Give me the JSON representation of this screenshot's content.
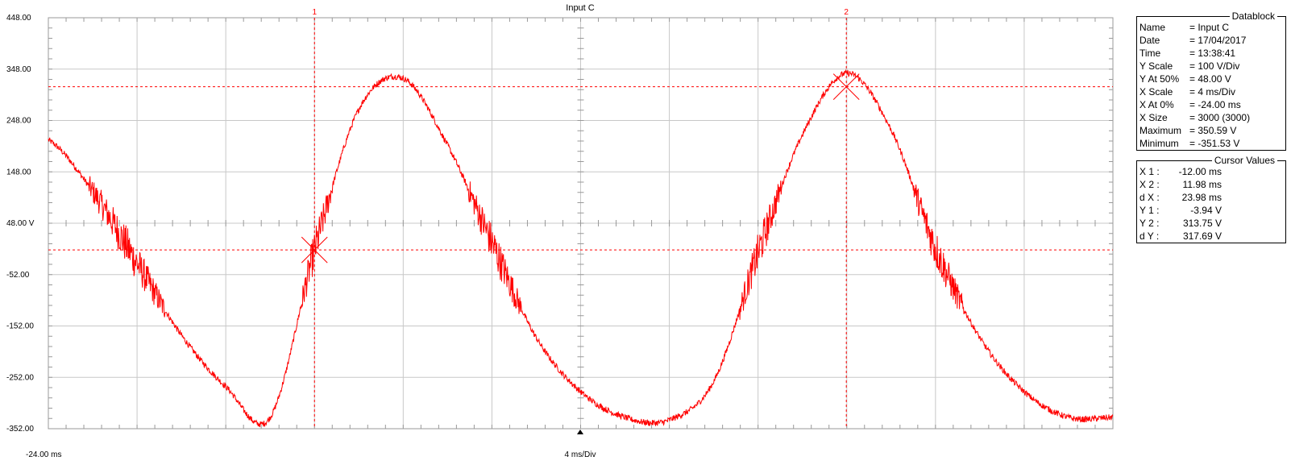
{
  "title": "Input C",
  "chart_data": {
    "type": "line",
    "title": "Input C",
    "x_start_label": "-24.00 ms",
    "x_scale_label": "4 ms/Div",
    "xlim": [
      -24,
      24
    ],
    "ylim": [
      -352,
      448
    ],
    "y_ticks": [
      "448.00",
      "348.00",
      "248.00",
      "148.00",
      "48.00 V",
      "-52.00",
      "-152.00",
      "-252.00",
      "-352.00"
    ],
    "grid": true,
    "series": [
      {
        "color": "#ff0000",
        "x": [
          -24,
          -22,
          -20,
          -18,
          -16,
          -14,
          -12,
          -10,
          -8,
          -6,
          -4,
          -2,
          0,
          2,
          4,
          6,
          8,
          10,
          12,
          14,
          16,
          18,
          20,
          22,
          24
        ],
        "y": [
          210,
          110,
          -30,
          -170,
          -270,
          -330,
          -5,
          270,
          330,
          200,
          10,
          -175,
          -280,
          -330,
          -335,
          -260,
          -10,
          220,
          340,
          230,
          0,
          -175,
          -280,
          -330,
          -330
        ]
      }
    ]
  },
  "cursors": [
    {
      "label": "1",
      "x": -12.0,
      "y": -3.94,
      "color": "#ff0000"
    },
    {
      "label": "2",
      "x": 11.98,
      "y": 313.75,
      "color": "#ff0000"
    }
  ],
  "datablock": {
    "title": "Datablock",
    "rows": [
      {
        "key": "Name",
        "value": "= Input C"
      },
      {
        "key": "Date",
        "value": "= 17/04/2017"
      },
      {
        "key": "Time",
        "value": "= 13:38:41"
      },
      {
        "key": "Y Scale",
        "value": "=  100    V/Div"
      },
      {
        "key": "Y At 50%",
        "value": "=    48.00 V"
      },
      {
        "key": "X Scale",
        "value": "=    4    ms/Div"
      },
      {
        "key": "X At 0%",
        "value": "=   -24.00 ms"
      },
      {
        "key": "X Size",
        "value": "= 3000 (3000)"
      },
      {
        "key": "Maximum",
        "value": "=  350.59 V"
      },
      {
        "key": "Minimum",
        "value": "= -351.53 V"
      }
    ]
  },
  "cursor_values": {
    "title": "Cursor Values",
    "rows": [
      {
        "key": "X 1 :",
        "value": "-12.00 ms"
      },
      {
        "key": "X 2 :",
        "value": "11.98 ms"
      },
      {
        "key": "d X :",
        "value": "23.98 ms"
      },
      {
        "key": "Y 1 :",
        "value": "-3.94 V"
      },
      {
        "key": "Y 2 :",
        "value": "313.75 V"
      },
      {
        "key": "d Y :",
        "value": "317.69 V"
      }
    ]
  }
}
